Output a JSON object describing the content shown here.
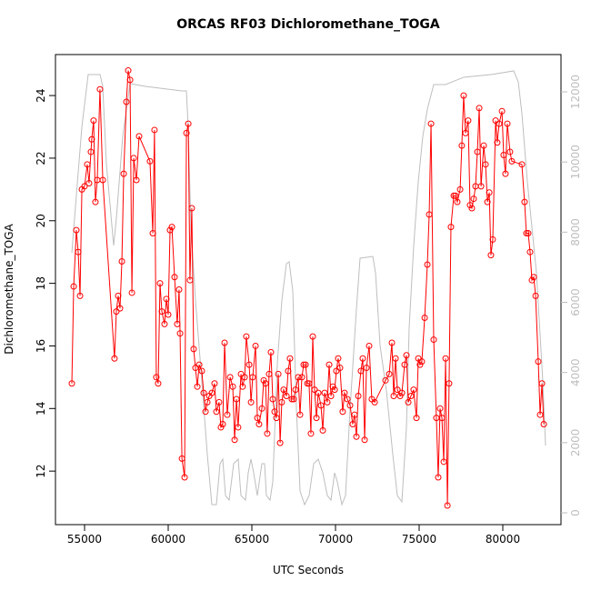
{
  "chart_data": {
    "type": "line",
    "title": "ORCAS RF03 Dichloromethane_TOGA",
    "xlabel": "UTC Seconds",
    "ylabel": "Dichloromethane_TOGA",
    "xlim": [
      53261,
      83478
    ],
    "ylim": [
      10.29,
      25.31
    ],
    "y2lim": [
      -337,
      13063
    ],
    "xticks": [
      55000,
      60000,
      65000,
      70000,
      75000,
      80000
    ],
    "yticks": [
      12,
      14,
      16,
      18,
      20,
      22,
      24
    ],
    "y2ticks": [
      0,
      2000,
      4000,
      6000,
      8000,
      10000,
      12000
    ],
    "series": [
      {
        "color": "#ff0000",
        "markers": true,
        "x": [
          54240,
          54350,
          54510,
          54620,
          54730,
          54840,
          55000,
          55160,
          55270,
          55380,
          55430,
          55540,
          55650,
          55760,
          55920,
          56090,
          56790,
          56900,
          57010,
          57120,
          57230,
          57340,
          57500,
          57610,
          57720,
          57830,
          57940,
          58100,
          58260,
          58910,
          59080,
          59180,
          59290,
          59400,
          59510,
          59620,
          59780,
          59890,
          60000,
          60110,
          60220,
          60380,
          60540,
          60650,
          60710,
          60820,
          60980,
          61090,
          61200,
          61300,
          61410,
          61520,
          61630,
          61740,
          61850,
          62010,
          62120,
          62230,
          62340,
          62450,
          62610,
          62770,
          62880,
          63040,
          63150,
          63260,
          63370,
          63530,
          63700,
          63860,
          63970,
          64080,
          64180,
          64350,
          64450,
          64570,
          64670,
          64840,
          64950,
          65050,
          65220,
          65330,
          65430,
          65600,
          65710,
          65820,
          65920,
          66030,
          66140,
          66250,
          66360,
          66470,
          66580,
          66690,
          66790,
          66900,
          67070,
          67170,
          67280,
          67390,
          67500,
          67610,
          67770,
          67880,
          67990,
          68100,
          68210,
          68320,
          68420,
          68530,
          68640,
          68750,
          68860,
          68970,
          69130,
          69240,
          69350,
          69510,
          69620,
          69730,
          69840,
          69950,
          70050,
          70160,
          70270,
          70430,
          70540,
          70710,
          70870,
          71030,
          71140,
          71250,
          71360,
          71520,
          71630,
          71740,
          71850,
          72010,
          72170,
          72340,
          72990,
          73210,
          73370,
          73480,
          73590,
          73700,
          73860,
          73970,
          74130,
          74240,
          74350,
          74510,
          74670,
          74840,
          74950,
          75050,
          75160,
          75330,
          75490,
          75600,
          75710,
          75870,
          76030,
          76140,
          76250,
          76360,
          76470,
          76580,
          76690,
          76790,
          76900,
          77070,
          77170,
          77280,
          77450,
          77550,
          77660,
          77770,
          77930,
          78040,
          78150,
          78260,
          78370,
          78480,
          78590,
          78700,
          78860,
          78970,
          79080,
          79190,
          79290,
          79400,
          79570,
          79670,
          79780,
          79950,
          80050,
          80160,
          80270,
          80430,
          80540,
          81140,
          81300,
          81410,
          81520,
          81630,
          81740,
          81850,
          81960,
          82120,
          82230,
          82340,
          82450
        ],
        "values": [
          14.8,
          17.9,
          19.7,
          19.0,
          17.6,
          21.0,
          21.1,
          21.8,
          21.2,
          22.2,
          22.6,
          23.2,
          20.6,
          21.3,
          24.2,
          21.3,
          15.6,
          17.1,
          17.6,
          17.2,
          18.7,
          21.5,
          23.8,
          24.8,
          24.5,
          17.7,
          22.0,
          21.3,
          22.7,
          21.9,
          19.6,
          22.9,
          15.0,
          14.8,
          18.0,
          17.1,
          16.7,
          17.5,
          17.0,
          19.7,
          19.8,
          18.2,
          16.7,
          17.8,
          16.4,
          12.4,
          11.8,
          22.8,
          23.1,
          18.1,
          20.4,
          15.9,
          15.3,
          14.7,
          15.4,
          15.2,
          14.5,
          13.9,
          14.2,
          14.4,
          14.5,
          14.8,
          13.9,
          14.2,
          13.4,
          13.5,
          16.1,
          13.8,
          15.0,
          14.7,
          13.0,
          14.3,
          13.4,
          15.1,
          14.7,
          15.0,
          16.3,
          15.4,
          14.2,
          15.0,
          16.0,
          13.7,
          13.5,
          14.0,
          14.9,
          14.8,
          13.2,
          15.1,
          15.8,
          14.3,
          13.9,
          13.7,
          15.1,
          12.9,
          14.2,
          14.6,
          14.4,
          15.2,
          15.6,
          14.3,
          14.3,
          14.6,
          15.0,
          13.8,
          15.0,
          15.4,
          15.4,
          14.8,
          14.8,
          13.2,
          16.3,
          14.6,
          13.7,
          14.5,
          14.1,
          13.3,
          14.5,
          14.2,
          15.4,
          14.4,
          14.7,
          14.6,
          15.2,
          15.6,
          15.3,
          13.9,
          14.5,
          14.3,
          14.1,
          13.5,
          13.8,
          13.1,
          14.4,
          15.2,
          15.6,
          13.0,
          15.3,
          16.0,
          14.3,
          14.2,
          14.9,
          15.1,
          16.1,
          14.4,
          15.6,
          14.6,
          14.4,
          14.5,
          15.4,
          15.7,
          14.2,
          14.4,
          14.6,
          13.7,
          15.6,
          15.4,
          15.5,
          16.9,
          18.6,
          20.2,
          23.1,
          16.2,
          13.7,
          11.8,
          14.0,
          13.7,
          12.3,
          15.6,
          10.9,
          14.8,
          19.8,
          20.8,
          20.8,
          20.6,
          21.0,
          22.4,
          24.0,
          22.8,
          23.2,
          20.5,
          20.4,
          20.7,
          21.1,
          22.2,
          23.6,
          21.1,
          22.4,
          21.8,
          20.6,
          20.9,
          18.9,
          19.4,
          23.2,
          22.5,
          23.1,
          23.5,
          22.1,
          21.5,
          23.1,
          22.2,
          21.9,
          21.8,
          20.6,
          19.6,
          19.6,
          19.0,
          18.1,
          18.2,
          17.6,
          15.5,
          13.8,
          14.8,
          13.5
        ]
      },
      {
        "color": "#bebebe",
        "markers": false,
        "axis": "y2",
        "x": [
          54239,
          54402,
          54837,
          55217,
          55924,
          56087,
          56304,
          56739,
          56902,
          57283,
          57718,
          58641,
          60815,
          61087,
          61196,
          61359,
          61631,
          62011,
          62337,
          62609,
          62881,
          63098,
          63261,
          63424,
          63642,
          63913,
          64185,
          64348,
          64620,
          64783,
          64946,
          65109,
          65327,
          65598,
          65761,
          65870,
          66087,
          66250,
          66522,
          66794,
          67066,
          67229,
          67446,
          67664,
          67881,
          68153,
          68424,
          68696,
          68968,
          69240,
          69511,
          69729,
          69946,
          70109,
          70381,
          70598,
          70870,
          71250,
          71468,
          72229,
          72392,
          72664,
          73044,
          73425,
          73696,
          73968,
          74240,
          74403,
          74675,
          74946,
          75218,
          75490,
          75870,
          76577,
          77664,
          79294,
          80653,
          80924,
          81142,
          81468,
          82011,
          82392,
          82555
        ],
        "values": [
          7413,
          8398,
          10990,
          12494,
          12494,
          12156,
          9953,
          7620,
          8398,
          10731,
          12234,
          12156,
          12027,
          12027,
          10990,
          8139,
          6065,
          3732,
          1659,
          233,
          233,
          1400,
          1529,
          492,
          363,
          1400,
          1529,
          492,
          363,
          1140,
          1529,
          1140,
          492,
          1400,
          1400,
          492,
          363,
          881,
          4251,
          6065,
          7102,
          7154,
          6324,
          2955,
          622,
          233,
          492,
          1400,
          1529,
          1140,
          492,
          363,
          1140,
          881,
          233,
          492,
          2955,
          5806,
          7258,
          7309,
          6843,
          4769,
          3473,
          1659,
          492,
          311,
          2436,
          5288,
          7620,
          9435,
          10731,
          11508,
          12208,
          12208,
          12416,
          12494,
          12597,
          12286,
          11379,
          9435,
          6843,
          3732,
          1918
        ]
      }
    ]
  }
}
